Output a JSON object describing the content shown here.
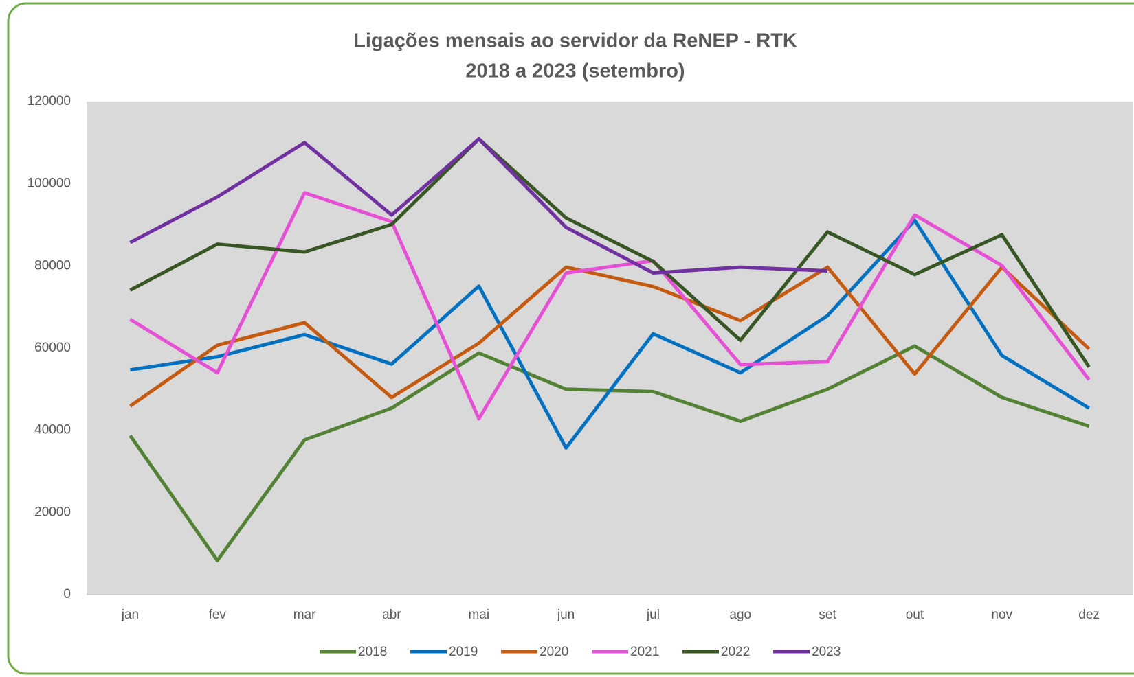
{
  "chart_data": {
    "type": "line",
    "title": [
      "Ligações mensais ao servidor da ReNEP - RTK",
      "2018 a 2023 (setembro)"
    ],
    "categories": [
      "jan",
      "fev",
      "mar",
      "abr",
      "mai",
      "jun",
      "jul",
      "ago",
      "set",
      "out",
      "nov",
      "dez"
    ],
    "ylim": [
      0,
      120000
    ],
    "yticks": [
      0,
      20000,
      40000,
      60000,
      80000,
      100000,
      120000
    ],
    "legend": "bottom",
    "series": [
      {
        "name": "2018",
        "color": "#548235",
        "values": [
          38700,
          8300,
          37650,
          45400,
          58800,
          50000,
          49400,
          42200,
          50000,
          60500,
          48000,
          41000
        ]
      },
      {
        "name": "2019",
        "color": "#0070c0",
        "values": [
          54700,
          57900,
          63300,
          56100,
          75100,
          35700,
          63500,
          54000,
          67900,
          91100,
          58200,
          45400
        ]
      },
      {
        "name": "2020",
        "color": "#c55a11",
        "values": [
          45900,
          60700,
          66200,
          48000,
          61200,
          79700,
          75000,
          66700,
          79700,
          53700,
          79700,
          59800
        ]
      },
      {
        "name": "2021",
        "color": "#e550d4",
        "values": [
          67000,
          54000,
          97800,
          90800,
          42800,
          78300,
          81300,
          56000,
          56700,
          92400,
          80100,
          52300
        ]
      },
      {
        "name": "2022",
        "color": "#375623",
        "values": [
          74100,
          85300,
          83400,
          90100,
          110900,
          91700,
          81100,
          61900,
          88300,
          77900,
          87600,
          55400
        ]
      },
      {
        "name": "2023",
        "color": "#7030a0",
        "values": [
          85700,
          96800,
          110000,
          92400,
          110900,
          89400,
          78300,
          79700,
          78800,
          null,
          null,
          null
        ]
      }
    ]
  }
}
